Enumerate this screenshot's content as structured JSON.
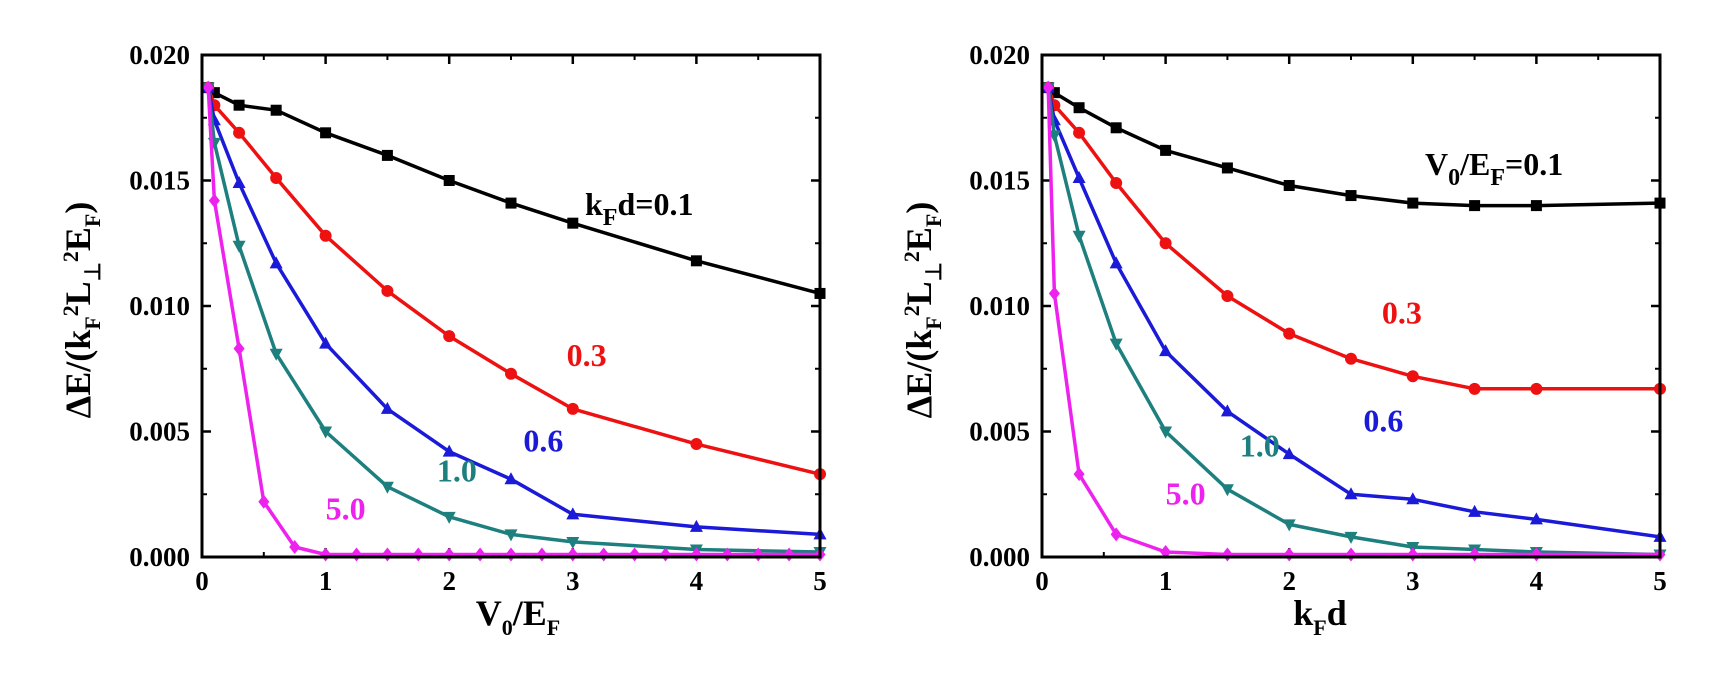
{
  "chart_data": [
    {
      "type": "line",
      "panel": "left",
      "xlabel": "V0/EF",
      "ylabel": "ΔE/(kF²L⊥²EF)",
      "xlim": [
        0,
        5
      ],
      "ylim": [
        0,
        0.02
      ],
      "xticks": [
        "0",
        "1",
        "2",
        "3",
        "4",
        "5"
      ],
      "yticks": [
        "0.000",
        "0.005",
        "0.010",
        "0.015",
        "0.020"
      ],
      "series": [
        {
          "name": "kFd=0.1",
          "label": "k_F d=0.1",
          "color": "#000000",
          "marker": "square",
          "x": [
            0.05,
            0.1,
            0.3,
            0.6,
            1,
            1.5,
            2,
            2.5,
            3,
            4,
            5
          ],
          "y": [
            0.0187,
            0.0185,
            0.018,
            0.0178,
            0.0169,
            0.016,
            0.015,
            0.0141,
            0.0133,
            0.0118,
            0.0105
          ]
        },
        {
          "name": "0.3",
          "label": "0.3",
          "color": "#ee1111",
          "marker": "circle",
          "x": [
            0.05,
            0.1,
            0.3,
            0.6,
            1,
            1.5,
            2,
            2.5,
            3,
            4,
            5
          ],
          "y": [
            0.0187,
            0.018,
            0.0169,
            0.0151,
            0.0128,
            0.0106,
            0.0088,
            0.0073,
            0.0059,
            0.0045,
            0.0033
          ]
        },
        {
          "name": "0.6",
          "label": "0.6",
          "color": "#1a1ad8",
          "marker": "triangle-up",
          "x": [
            0.05,
            0.1,
            0.3,
            0.6,
            1,
            1.5,
            2,
            2.5,
            3,
            4,
            5
          ],
          "y": [
            0.0187,
            0.0174,
            0.0149,
            0.0117,
            0.0085,
            0.0059,
            0.0042,
            0.0031,
            0.0017,
            0.0012,
            0.0009
          ]
        },
        {
          "name": "1.0",
          "label": "1.0",
          "color": "#1e7f7f",
          "marker": "triangle-down",
          "x": [
            0.05,
            0.1,
            0.3,
            0.6,
            1,
            1.5,
            2,
            2.5,
            3,
            4,
            5
          ],
          "y": [
            0.0187,
            0.0165,
            0.0124,
            0.0081,
            0.005,
            0.0028,
            0.0016,
            0.0009,
            0.0006,
            0.0003,
            0.0002
          ]
        },
        {
          "name": "5.0",
          "label": "5.0",
          "color": "#ee22ee",
          "marker": "diamond",
          "x": [
            0.05,
            0.1,
            0.3,
            0.5,
            0.75,
            1,
            1.25,
            1.5,
            1.75,
            2,
            2.25,
            2.5,
            2.75,
            3,
            3.25,
            3.5,
            3.75,
            4,
            4.25,
            4.5,
            4.75,
            5
          ],
          "y": [
            0.0187,
            0.0142,
            0.0083,
            0.0022,
            0.0004,
            0.0001,
            0.0001,
            0.0001,
            0.0001,
            0.0001,
            0.0001,
            0.0001,
            0.0001,
            0.0001,
            0.0001,
            0.0001,
            0.0001,
            0.0001,
            0.0001,
            0.0001,
            0.0001,
            0.0001
          ]
        }
      ],
      "annotations": [
        {
          "text": "0.3",
          "color": "#ee1111",
          "x": 2.95,
          "y": 0.0076
        },
        {
          "text": "0.6",
          "color": "#1a1ad8",
          "x": 2.6,
          "y": 0.0042
        },
        {
          "text": "1.0",
          "color": "#1e7f7f",
          "x": 1.9,
          "y": 0.003
        },
        {
          "text": "5.0",
          "color": "#ee22ee",
          "x": 1.0,
          "y": 0.0015
        }
      ]
    },
    {
      "type": "line",
      "panel": "right",
      "xlabel": "kFd",
      "ylabel": "ΔE/(kF²L⊥²EF)",
      "xlim": [
        0,
        5
      ],
      "ylim": [
        0,
        0.02
      ],
      "xticks": [
        "0",
        "1",
        "2",
        "3",
        "4",
        "5"
      ],
      "yticks": [
        "0.000",
        "0.005",
        "0.010",
        "0.015",
        "0.020"
      ],
      "series": [
        {
          "name": "V0/EF=0.1",
          "label": "V_0/E_F=0.1",
          "color": "#000000",
          "marker": "square",
          "x": [
            0.05,
            0.1,
            0.3,
            0.6,
            1,
            1.5,
            2,
            2.5,
            3,
            3.5,
            4,
            5
          ],
          "y": [
            0.0187,
            0.0185,
            0.0179,
            0.0171,
            0.0162,
            0.0155,
            0.0148,
            0.0144,
            0.0141,
            0.014,
            0.014,
            0.0141
          ]
        },
        {
          "name": "0.3",
          "label": "0.3",
          "color": "#ee1111",
          "marker": "circle",
          "x": [
            0.05,
            0.1,
            0.3,
            0.6,
            1,
            1.5,
            2,
            2.5,
            3,
            3.5,
            4,
            5
          ],
          "y": [
            0.0187,
            0.018,
            0.0169,
            0.0149,
            0.0125,
            0.0104,
            0.0089,
            0.0079,
            0.0072,
            0.0067,
            0.0067,
            0.0067
          ]
        },
        {
          "name": "0.6",
          "label": "0.6",
          "color": "#1a1ad8",
          "marker": "triangle-up",
          "x": [
            0.05,
            0.1,
            0.3,
            0.6,
            1,
            1.5,
            2,
            2.5,
            3,
            3.5,
            4,
            5
          ],
          "y": [
            0.0187,
            0.0174,
            0.0151,
            0.0117,
            0.0082,
            0.0058,
            0.0041,
            0.0025,
            0.0023,
            0.0018,
            0.0015,
            0.0008
          ]
        },
        {
          "name": "1.0",
          "label": "1.0",
          "color": "#1e7f7f",
          "marker": "triangle-down",
          "x": [
            0.05,
            0.1,
            0.3,
            0.6,
            1,
            1.5,
            2,
            2.5,
            3,
            3.5,
            4,
            5
          ],
          "y": [
            0.0187,
            0.0168,
            0.0128,
            0.0085,
            0.005,
            0.0027,
            0.0013,
            0.0008,
            0.0004,
            0.0003,
            0.0002,
            0.0001
          ]
        },
        {
          "name": "5.0",
          "label": "5.0",
          "color": "#ee22ee",
          "marker": "diamond",
          "x": [
            0.05,
            0.1,
            0.3,
            0.6,
            1,
            1.5,
            2,
            2.5,
            3,
            3.5,
            4,
            5
          ],
          "y": [
            0.0187,
            0.0105,
            0.0033,
            0.0009,
            0.0002,
            0.0001,
            0.0001,
            0.0001,
            0.0001,
            0.0001,
            0.0001,
            0.0001
          ]
        }
      ],
      "annotations": [
        {
          "text": "0.3",
          "color": "#ee1111",
          "x": 2.75,
          "y": 0.0093
        },
        {
          "text": "0.6",
          "color": "#1a1ad8",
          "x": 2.6,
          "y": 0.005
        },
        {
          "text": "1.0",
          "color": "#1e7f7f",
          "x": 1.6,
          "y": 0.004
        },
        {
          "text": "5.0",
          "color": "#ee22ee",
          "x": 1.0,
          "y": 0.0021
        }
      ]
    }
  ]
}
